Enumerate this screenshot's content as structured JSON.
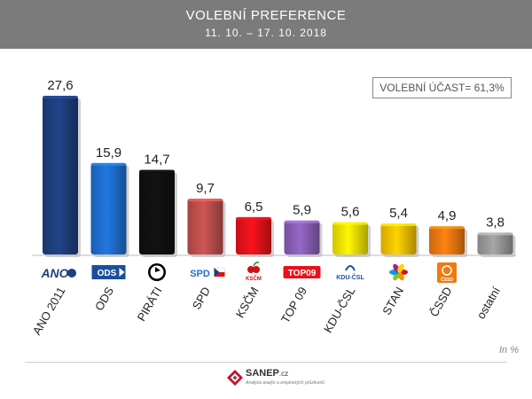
{
  "header": {
    "title": "VOLEBNÍ PREFERENCE",
    "dates": "11. 10. – 17. 10. 2018"
  },
  "turnout_label": "VOLEBNÍ ÚČAST= 61,3%",
  "unit_label": "In %",
  "footer": {
    "brand": "SANEP",
    "brand_suffix": ".cz",
    "tagline": "Analýza analýz a empirických průzkumů"
  },
  "chart_data": {
    "type": "bar",
    "title": "VOLEBNÍ PREFERENCE",
    "subtitle": "11. 10. – 17. 10. 2018",
    "xlabel": "",
    "ylabel": "In %",
    "ylim": [
      0,
      30
    ],
    "categories": [
      "ANO 2011",
      "ODS",
      "PIRÁTI",
      "SPD",
      "KSČM",
      "TOP 09",
      "KDU-ČSL",
      "STAN",
      "ČSSD",
      "ostatní"
    ],
    "values": [
      27.6,
      15.9,
      14.7,
      9.7,
      6.5,
      5.9,
      5.6,
      5.4,
      4.9,
      3.8
    ],
    "value_labels": [
      "27,6",
      "15,9",
      "14,7",
      "9,7",
      "6,5",
      "5,9",
      "5,6",
      "5,4",
      "4,9",
      "3,8"
    ],
    "colors": [
      "#1f3f7f",
      "#1f6fd0",
      "#111111",
      "#c0504d",
      "#e8121b",
      "#8b60b8",
      "#f5e600",
      "#f7c400",
      "#f07a10",
      "#9a9a9a"
    ],
    "logos": [
      {
        "text": "ANO",
        "icon": "ano-logo-icon",
        "color": "#1f3f7f"
      },
      {
        "text": "ODS",
        "icon": "ods-logo-icon",
        "color": "#1b4f9c"
      },
      {
        "text": "",
        "icon": "pirati-logo-icon",
        "color": "#000000"
      },
      {
        "text": "SPD",
        "icon": "spd-logo-icon",
        "color": "#1f6fd0"
      },
      {
        "text": "KSČM",
        "icon": "kscm-logo-icon",
        "color": "#d01010"
      },
      {
        "text": "TOP09",
        "icon": "top09-logo-icon",
        "color": "#e8121b"
      },
      {
        "text": "KDU-ČSL",
        "icon": "kdu-logo-icon",
        "color": "#1b4f9c"
      },
      {
        "text": "",
        "icon": "stan-logo-icon",
        "color": "#e8a000"
      },
      {
        "text": "ČSSD",
        "icon": "cssd-logo-icon",
        "color": "#f07a10"
      },
      {
        "text": "",
        "icon": "none",
        "color": "#ffffff"
      }
    ]
  }
}
